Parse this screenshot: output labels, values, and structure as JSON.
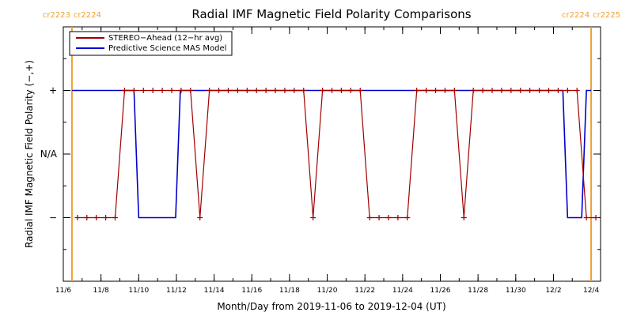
{
  "chart_data": {
    "type": "line",
    "title": "Radial IMF Magnetic Field Polarity Comparisons",
    "xlabel": "Month/Day from 2019-11-06 to 2019-12-04 (UT)",
    "ylabel": "Radial IMF Magnetic Field Polarity (−,+)",
    "x_start": "2019-11-06",
    "xlim": [
      "2019-11-06",
      "2019-12-04T12:00"
    ],
    "x_ticks": [
      "11/6",
      "11/8",
      "11/10",
      "11/12",
      "11/14",
      "11/16",
      "11/18",
      "11/20",
      "11/22",
      "11/24",
      "11/26",
      "11/28",
      "11/30",
      "12/2",
      "12/4"
    ],
    "y_categories": [
      "−",
      "N/A",
      "+"
    ],
    "y_values_map": {
      "-1": "−",
      "0": "N/A",
      "1": "+"
    },
    "ylim": [
      -2,
      2
    ],
    "grid": false,
    "legend_placement": "top-left",
    "series": [
      {
        "name": "STEREO−Ahead (12−hr avg)",
        "color": "#a00000",
        "marker": "+",
        "points": [
          [
            "2019-11-06T18:00",
            -1
          ],
          [
            "2019-11-07T06:00",
            -1
          ],
          [
            "2019-11-07T18:00",
            -1
          ],
          [
            "2019-11-08T06:00",
            -1
          ],
          [
            "2019-11-08T18:00",
            -1
          ],
          [
            "2019-11-09T06:00",
            1
          ],
          [
            "2019-11-09T18:00",
            1
          ],
          [
            "2019-11-10T06:00",
            1
          ],
          [
            "2019-11-10T18:00",
            1
          ],
          [
            "2019-11-11T06:00",
            1
          ],
          [
            "2019-11-11T18:00",
            1
          ],
          [
            "2019-11-12T06:00",
            1
          ],
          [
            "2019-11-12T18:00",
            1
          ],
          [
            "2019-11-13T06:00",
            -1
          ],
          [
            "2019-11-13T18:00",
            1
          ],
          [
            "2019-11-14T06:00",
            1
          ],
          [
            "2019-11-14T18:00",
            1
          ],
          [
            "2019-11-15T06:00",
            1
          ],
          [
            "2019-11-15T18:00",
            1
          ],
          [
            "2019-11-16T06:00",
            1
          ],
          [
            "2019-11-16T18:00",
            1
          ],
          [
            "2019-11-17T06:00",
            1
          ],
          [
            "2019-11-17T18:00",
            1
          ],
          [
            "2019-11-18T06:00",
            1
          ],
          [
            "2019-11-18T18:00",
            1
          ],
          [
            "2019-11-19T06:00",
            -1
          ],
          [
            "2019-11-19T18:00",
            1
          ],
          [
            "2019-11-20T06:00",
            1
          ],
          [
            "2019-11-20T18:00",
            1
          ],
          [
            "2019-11-21T06:00",
            1
          ],
          [
            "2019-11-21T18:00",
            1
          ],
          [
            "2019-11-22T06:00",
            -1
          ],
          [
            "2019-11-22T18:00",
            -1
          ],
          [
            "2019-11-23T06:00",
            -1
          ],
          [
            "2019-11-23T18:00",
            -1
          ],
          [
            "2019-11-24T06:00",
            -1
          ],
          [
            "2019-11-24T18:00",
            1
          ],
          [
            "2019-11-25T06:00",
            1
          ],
          [
            "2019-11-25T18:00",
            1
          ],
          [
            "2019-11-26T06:00",
            1
          ],
          [
            "2019-11-26T18:00",
            1
          ],
          [
            "2019-11-27T06:00",
            -1
          ],
          [
            "2019-11-27T18:00",
            1
          ],
          [
            "2019-11-28T06:00",
            1
          ],
          [
            "2019-11-28T18:00",
            1
          ],
          [
            "2019-11-29T06:00",
            1
          ],
          [
            "2019-11-29T18:00",
            1
          ],
          [
            "2019-11-30T06:00",
            1
          ],
          [
            "2019-11-30T18:00",
            1
          ],
          [
            "2019-12-01T06:00",
            1
          ],
          [
            "2019-12-01T18:00",
            1
          ],
          [
            "2019-12-02T06:00",
            1
          ],
          [
            "2019-12-02T18:00",
            1
          ],
          [
            "2019-12-03T06:00",
            1
          ],
          [
            "2019-12-03T18:00",
            -1
          ],
          [
            "2019-12-04T06:00",
            -1
          ]
        ]
      },
      {
        "name": "Predictive Science MAS Model",
        "color": "#0000cc",
        "marker": "none",
        "points": [
          [
            "2019-11-06T11:00",
            1
          ],
          [
            "2019-11-09T18:00",
            1
          ],
          [
            "2019-11-10T00:00",
            -1
          ],
          [
            "2019-11-11T23:00",
            -1
          ],
          [
            "2019-11-12T05:00",
            1
          ],
          [
            "2019-12-02T12:00",
            1
          ],
          [
            "2019-12-02T18:00",
            -1
          ],
          [
            "2019-12-03T12:00",
            -1
          ],
          [
            "2019-12-03T18:00",
            1
          ],
          [
            "2019-12-04T00:00",
            1
          ]
        ]
      }
    ],
    "carrington_markers": [
      {
        "x": "2019-11-06T11:00",
        "label_left": "cr2223",
        "label_right": "cr2224"
      },
      {
        "x": "2019-12-04T00:00",
        "label_left": "cr2224",
        "label_right": "cr2225"
      }
    ],
    "marker_color": "#f0a030"
  }
}
